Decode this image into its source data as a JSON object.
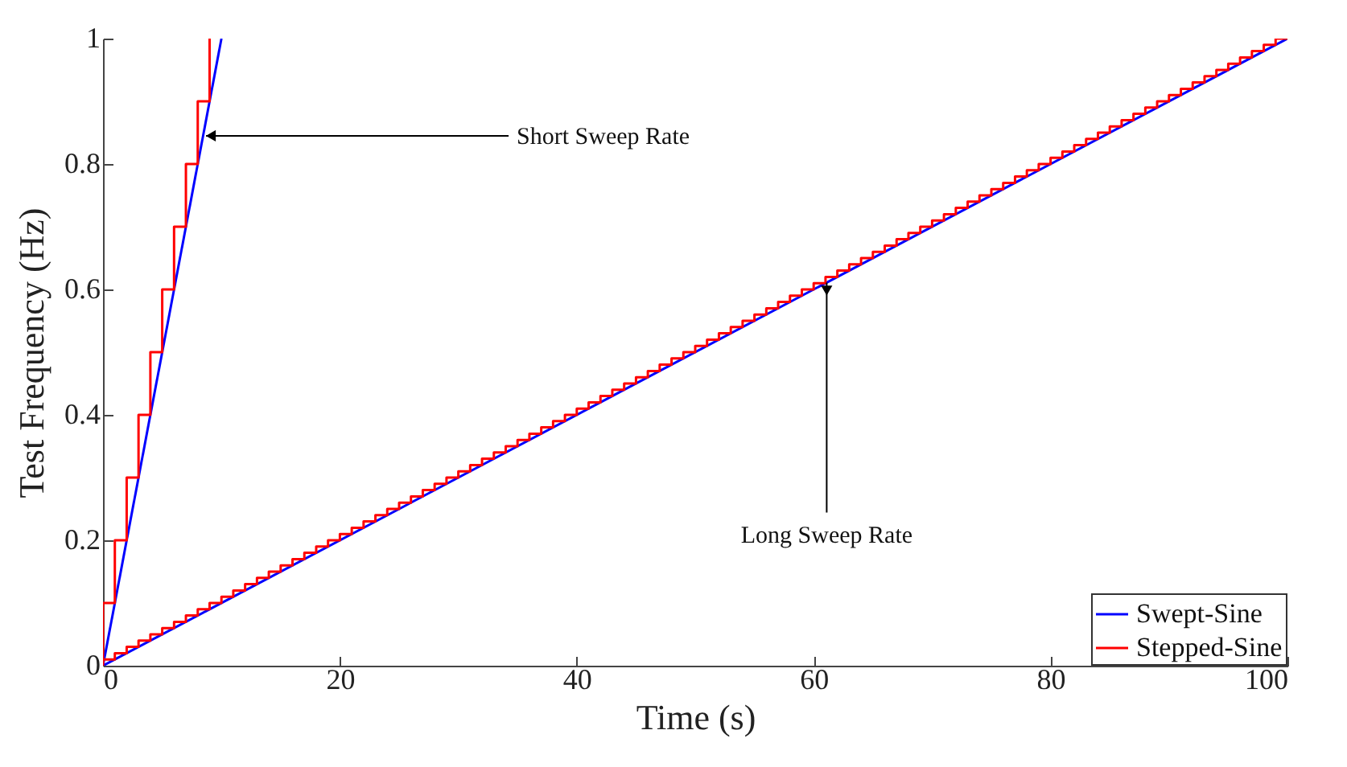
{
  "chart_data": {
    "type": "line",
    "xlabel": "Time (s)",
    "ylabel": "Test Frequency (Hz)",
    "xlim": [
      0,
      100
    ],
    "ylim": [
      0,
      1
    ],
    "xticks": [
      0,
      20,
      40,
      60,
      80,
      100
    ],
    "yticks": [
      0,
      0.2,
      0.4,
      0.6,
      0.8,
      1
    ],
    "grid": false,
    "legend": "bottom right",
    "series": [
      {
        "name": "Swept-Sine",
        "color": "#0000ff",
        "x": [
          0,
          10
        ],
        "values": [
          0,
          1
        ]
      },
      {
        "name": "Stepped-Sine",
        "type": "step",
        "color": "#ff0000",
        "x": [
          0,
          0,
          1,
          2,
          3,
          4,
          5,
          6,
          7,
          8,
          9
        ],
        "values": [
          0,
          0.1,
          0.2,
          0.3,
          0.4,
          0.5,
          0.6,
          0.7,
          0.8,
          0.9,
          1
        ]
      },
      {
        "color": "#0000ff",
        "x": [
          0,
          100
        ],
        "values": [
          0,
          1
        ]
      },
      {
        "type": "step",
        "color": "#ff0000",
        "x": [
          0,
          0,
          1,
          2,
          3,
          4,
          5,
          6,
          7,
          8,
          9,
          10,
          11,
          12,
          13,
          14,
          15,
          16,
          17,
          18,
          19,
          20,
          21,
          22,
          23,
          24,
          25,
          26,
          27,
          28,
          29,
          30,
          31,
          32,
          33,
          34,
          35,
          36,
          37,
          38,
          39,
          40,
          41,
          42,
          43,
          44,
          45,
          46,
          47,
          48,
          49,
          50,
          51,
          52,
          53,
          54,
          55,
          56,
          57,
          58,
          59,
          60,
          61,
          62,
          63,
          64,
          65,
          66,
          67,
          68,
          69,
          70,
          71,
          72,
          73,
          74,
          75,
          76,
          77,
          78,
          79,
          80,
          81,
          82,
          83,
          84,
          85,
          86,
          87,
          88,
          89,
          90,
          91,
          92,
          93,
          94,
          95,
          96,
          97,
          98,
          99,
          100
        ],
        "values": [
          0,
          0.01,
          0.02,
          0.03,
          0.04,
          0.05,
          0.06,
          0.07,
          0.08,
          0.09,
          0.1,
          0.11,
          0.12,
          0.13,
          0.14,
          0.15,
          0.16,
          0.17,
          0.18,
          0.19,
          0.2,
          0.21,
          0.22,
          0.23,
          0.24,
          0.25,
          0.26,
          0.27,
          0.28,
          0.29,
          0.3,
          0.31,
          0.32,
          0.33,
          0.34,
          0.35,
          0.36,
          0.37,
          0.38,
          0.39,
          0.4,
          0.41,
          0.42,
          0.43,
          0.44,
          0.45,
          0.46,
          0.47,
          0.48,
          0.49,
          0.5,
          0.51,
          0.52,
          0.53,
          0.54,
          0.55,
          0.56,
          0.57,
          0.58,
          0.59,
          0.6,
          0.61,
          0.62,
          0.63,
          0.64,
          0.65,
          0.66,
          0.67,
          0.68,
          0.69,
          0.7,
          0.71,
          0.72,
          0.73,
          0.74,
          0.75,
          0.76,
          0.77,
          0.78,
          0.79,
          0.8,
          0.81,
          0.82,
          0.83,
          0.84,
          0.85,
          0.86,
          0.87,
          0.88,
          0.89,
          0.9,
          0.91,
          0.92,
          0.93,
          0.94,
          0.95,
          0.96,
          0.97,
          0.98,
          0.99,
          1,
          1
        ]
      }
    ],
    "annotations": [
      {
        "text": "Short Sweep Rate",
        "x": 8.7,
        "y": 0.845
      },
      {
        "text": "Long Sweep Rate",
        "x": 61.1,
        "y": 0.611
      }
    ]
  }
}
